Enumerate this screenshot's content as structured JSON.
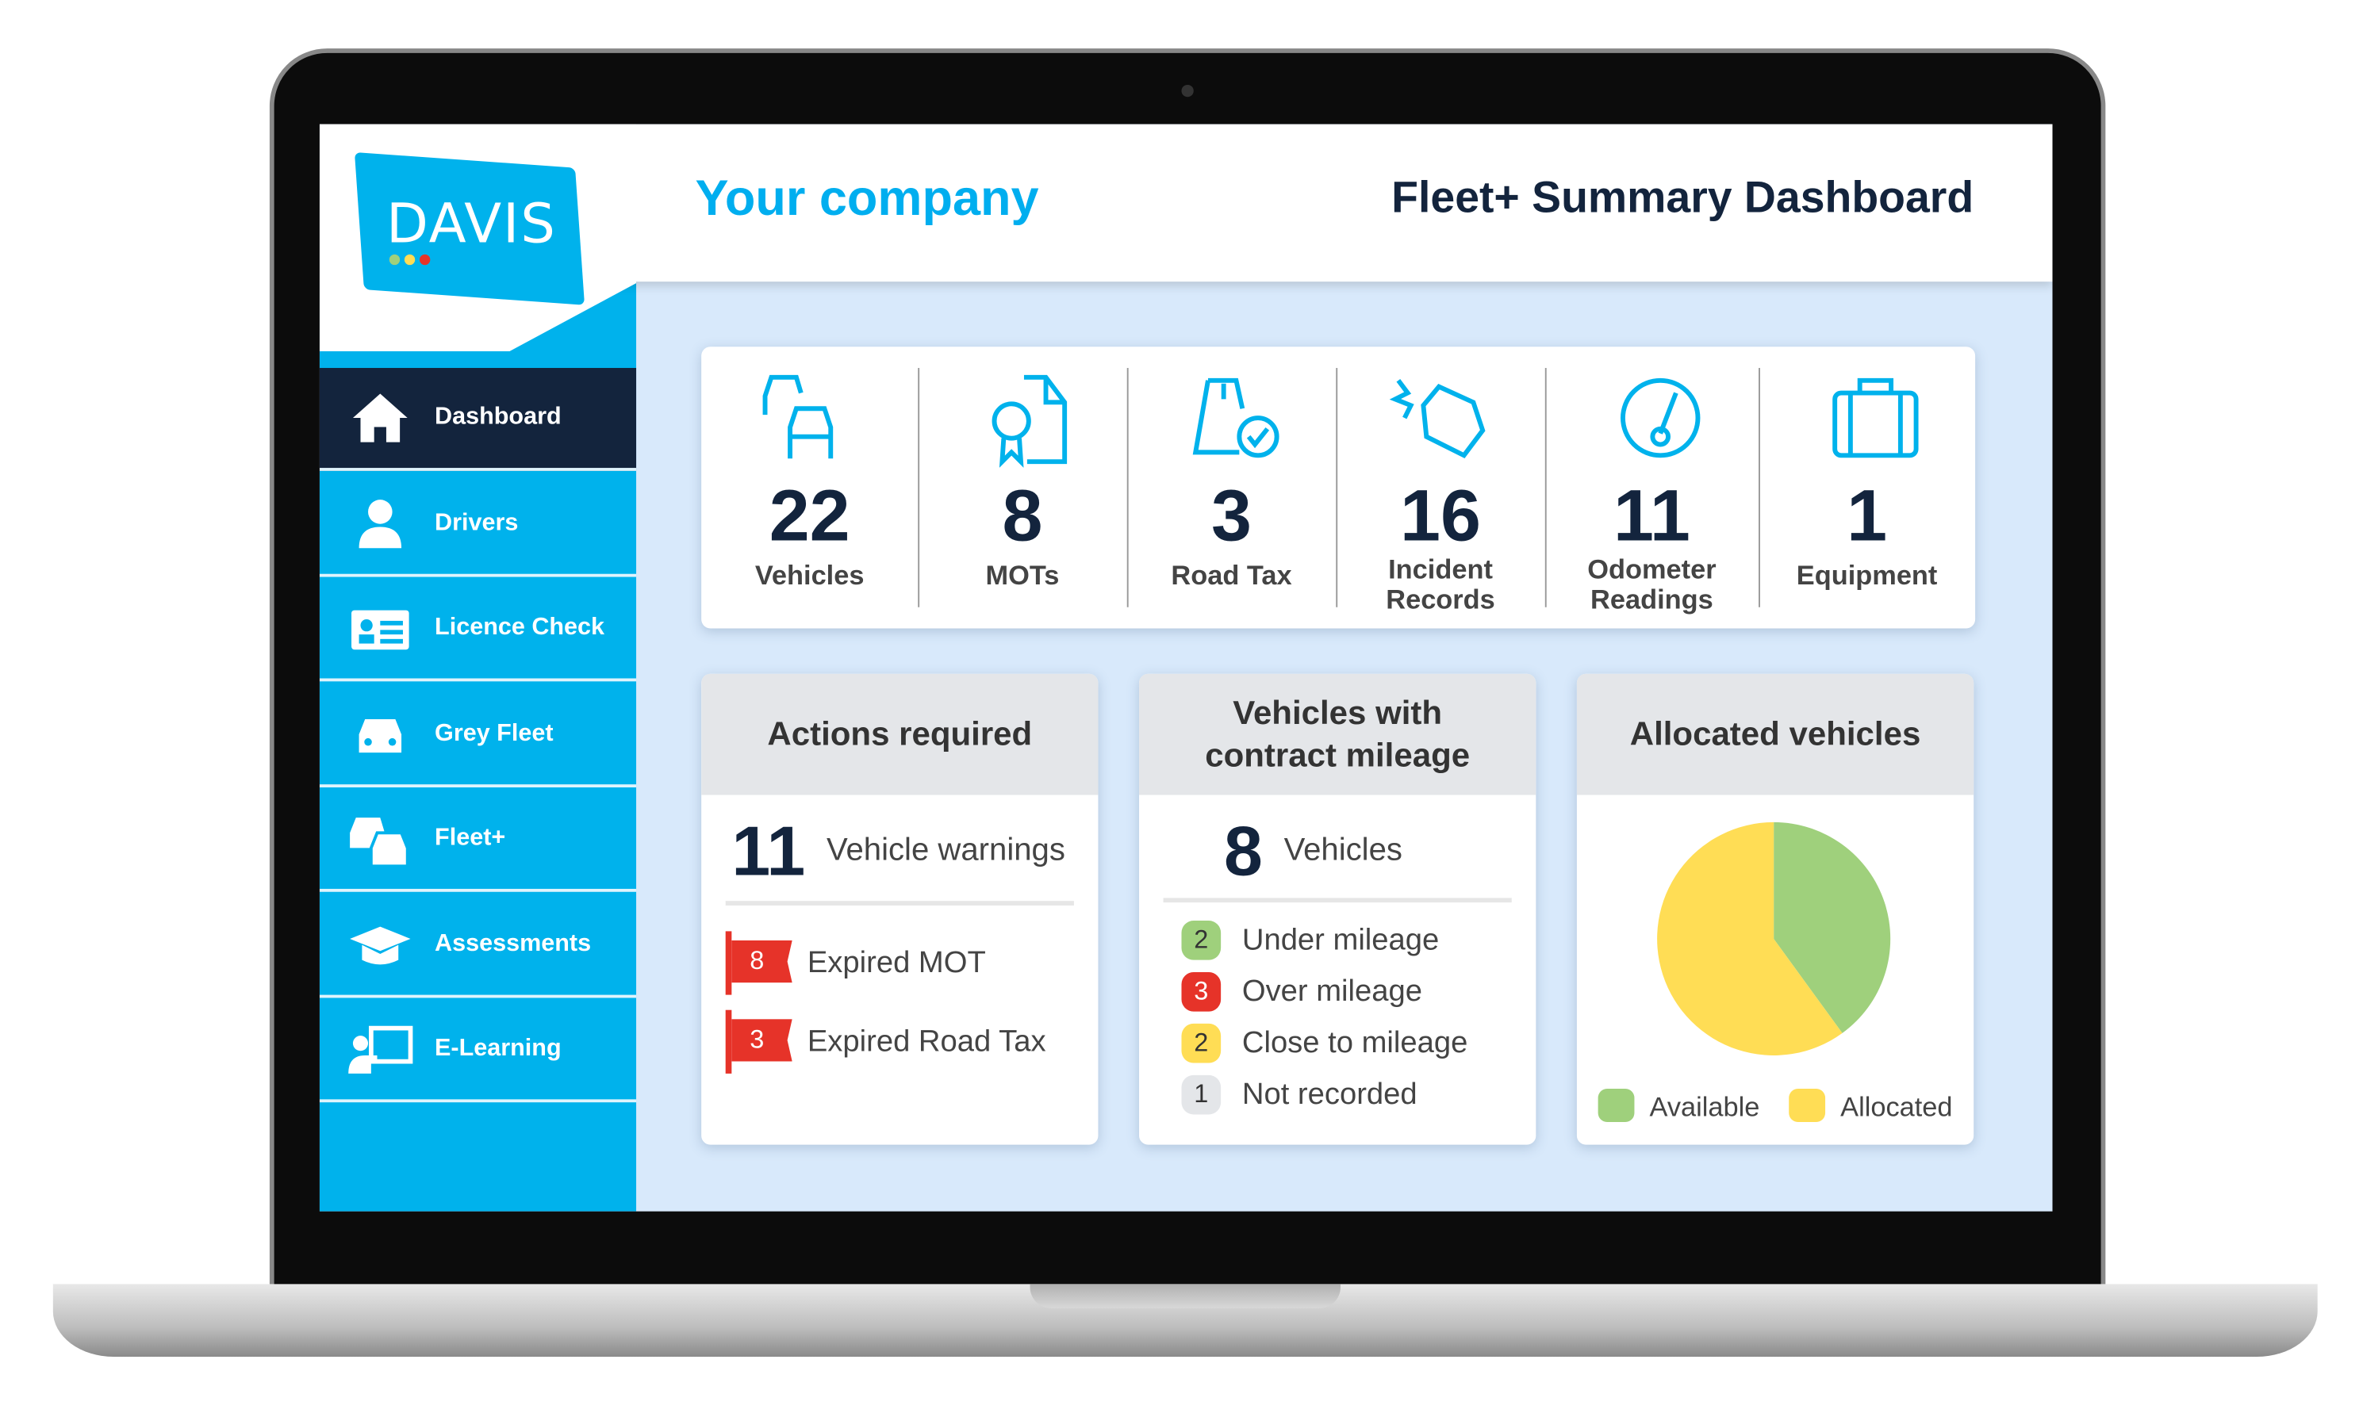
{
  "brand": {
    "logo_text": "DAVIS",
    "company": "Your company",
    "title": "Fleet+ Summary Dashboard"
  },
  "sidebar": {
    "items": [
      {
        "label": "Dashboard",
        "icon": "home-icon",
        "active": true
      },
      {
        "label": "Drivers",
        "icon": "user-icon"
      },
      {
        "label": "Licence Check",
        "icon": "id-card-icon"
      },
      {
        "label": "Grey Fleet",
        "icon": "car-icon"
      },
      {
        "label": "Fleet+",
        "icon": "cars-icon"
      },
      {
        "label": "Assessments",
        "icon": "graduation-cap-icon"
      },
      {
        "label": "E-Learning",
        "icon": "presentation-icon"
      }
    ]
  },
  "stats": [
    {
      "value": "22",
      "label": "Vehicles",
      "icon": "cars-icon"
    },
    {
      "value": "8",
      "label": "MOTs",
      "icon": "certificate-icon"
    },
    {
      "value": "3",
      "label": "Road Tax",
      "icon": "road-check-icon"
    },
    {
      "value": "16",
      "label": "Incident Records",
      "icon": "crash-icon"
    },
    {
      "value": "11",
      "label": "Odometer Readings",
      "icon": "gauge-icon"
    },
    {
      "value": "1",
      "label": "Equipment",
      "icon": "briefcase-icon"
    }
  ],
  "actions": {
    "title": "Actions required",
    "count": "11",
    "count_label": "Vehicle warnings",
    "items": [
      {
        "value": "8",
        "label": "Expired MOT"
      },
      {
        "value": "3",
        "label": "Expired Road Tax"
      }
    ]
  },
  "mileage": {
    "title_line1": "Vehicles with",
    "title_line2": "contract mileage",
    "count": "8",
    "count_label": "Vehicles",
    "items": [
      {
        "value": "2",
        "label": "Under mileage",
        "color": "#9fd07c"
      },
      {
        "value": "3",
        "label": "Over mileage",
        "color": "#e63329"
      },
      {
        "value": "2",
        "label": "Close to mileage",
        "color": "#ffdd55"
      },
      {
        "value": "1",
        "label": "Not recorded",
        "color": "#e4e6e9"
      }
    ]
  },
  "chart_data": {
    "type": "pie",
    "title": "Allocated vehicles",
    "categories": [
      "Available",
      "Allocated"
    ],
    "values": [
      40,
      60
    ],
    "colors": [
      "#9fd07c",
      "#ffdd55"
    ],
    "legend": "bottom"
  }
}
